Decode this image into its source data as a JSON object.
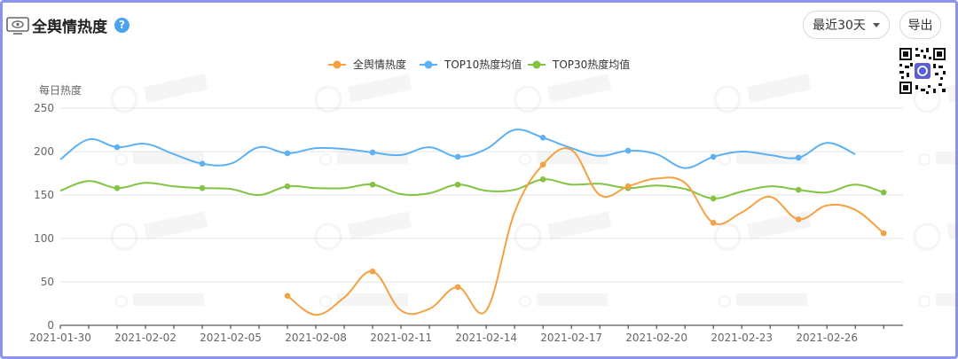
{
  "header": {
    "title": "全舆情热度",
    "help_glyph": "?",
    "range_label": "最近30天",
    "export_label": "导出"
  },
  "colors": {
    "series_orange": "#f5a142",
    "series_blue": "#5cb0f5",
    "series_green": "#82c341",
    "grid": "#e6e6e6",
    "axis": "#333333",
    "frame": "#8b93f0"
  },
  "icons": [
    "monitor-eye-icon",
    "help-icon",
    "chevron-down-icon",
    "qr-code-icon"
  ],
  "chart_data": {
    "type": "line",
    "title": "",
    "ylabel": "每日热度",
    "xlabel": "",
    "ylim": [
      0,
      250
    ],
    "yticks": [
      "0",
      "50",
      "100",
      "150",
      "200",
      "250"
    ],
    "grid": true,
    "legend_position": "top-center",
    "x": [
      "2021-01-30",
      "2021-01-31",
      "2021-02-01",
      "2021-02-02",
      "2021-02-03",
      "2021-02-04",
      "2021-02-05",
      "2021-02-06",
      "2021-02-07",
      "2021-02-08",
      "2021-02-09",
      "2021-02-10",
      "2021-02-11",
      "2021-02-12",
      "2021-02-13",
      "2021-02-14",
      "2021-02-15",
      "2021-02-16",
      "2021-02-17",
      "2021-02-18",
      "2021-02-19",
      "2021-02-20",
      "2021-02-21",
      "2021-02-22",
      "2021-02-23",
      "2021-02-24",
      "2021-02-25",
      "2021-02-26",
      "2021-02-27",
      "2021-02-28"
    ],
    "xtick_labels": [
      "2021-01-30",
      "2021-02-02",
      "2021-02-05",
      "2021-02-08",
      "2021-02-11",
      "2021-02-14",
      "2021-02-17",
      "2021-02-20",
      "2021-02-23",
      "2021-02-26"
    ],
    "series": [
      {
        "name": "全舆情热度",
        "values": [
          null,
          null,
          null,
          null,
          null,
          null,
          null,
          null,
          34,
          12,
          32,
          62,
          17,
          19,
          44,
          17,
          130,
          185,
          202,
          150,
          160,
          169,
          164,
          118,
          130,
          148,
          122,
          138,
          133,
          106
        ]
      },
      {
        "name": "TOP10热度均值",
        "values": [
          191,
          214,
          205,
          209,
          197,
          186,
          186,
          205,
          198,
          204,
          203,
          199,
          196,
          205,
          194,
          203,
          225,
          216,
          204,
          195,
          201,
          197,
          181,
          194,
          200,
          196,
          193,
          210,
          197,
          null
        ]
      },
      {
        "name": "TOP30热度均值",
        "values": [
          155,
          166,
          158,
          164,
          160,
          158,
          157,
          150,
          160,
          158,
          158,
          162,
          151,
          152,
          162,
          155,
          156,
          168,
          162,
          163,
          158,
          161,
          157,
          146,
          154,
          160,
          156,
          153,
          162,
          153
        ]
      }
    ]
  }
}
